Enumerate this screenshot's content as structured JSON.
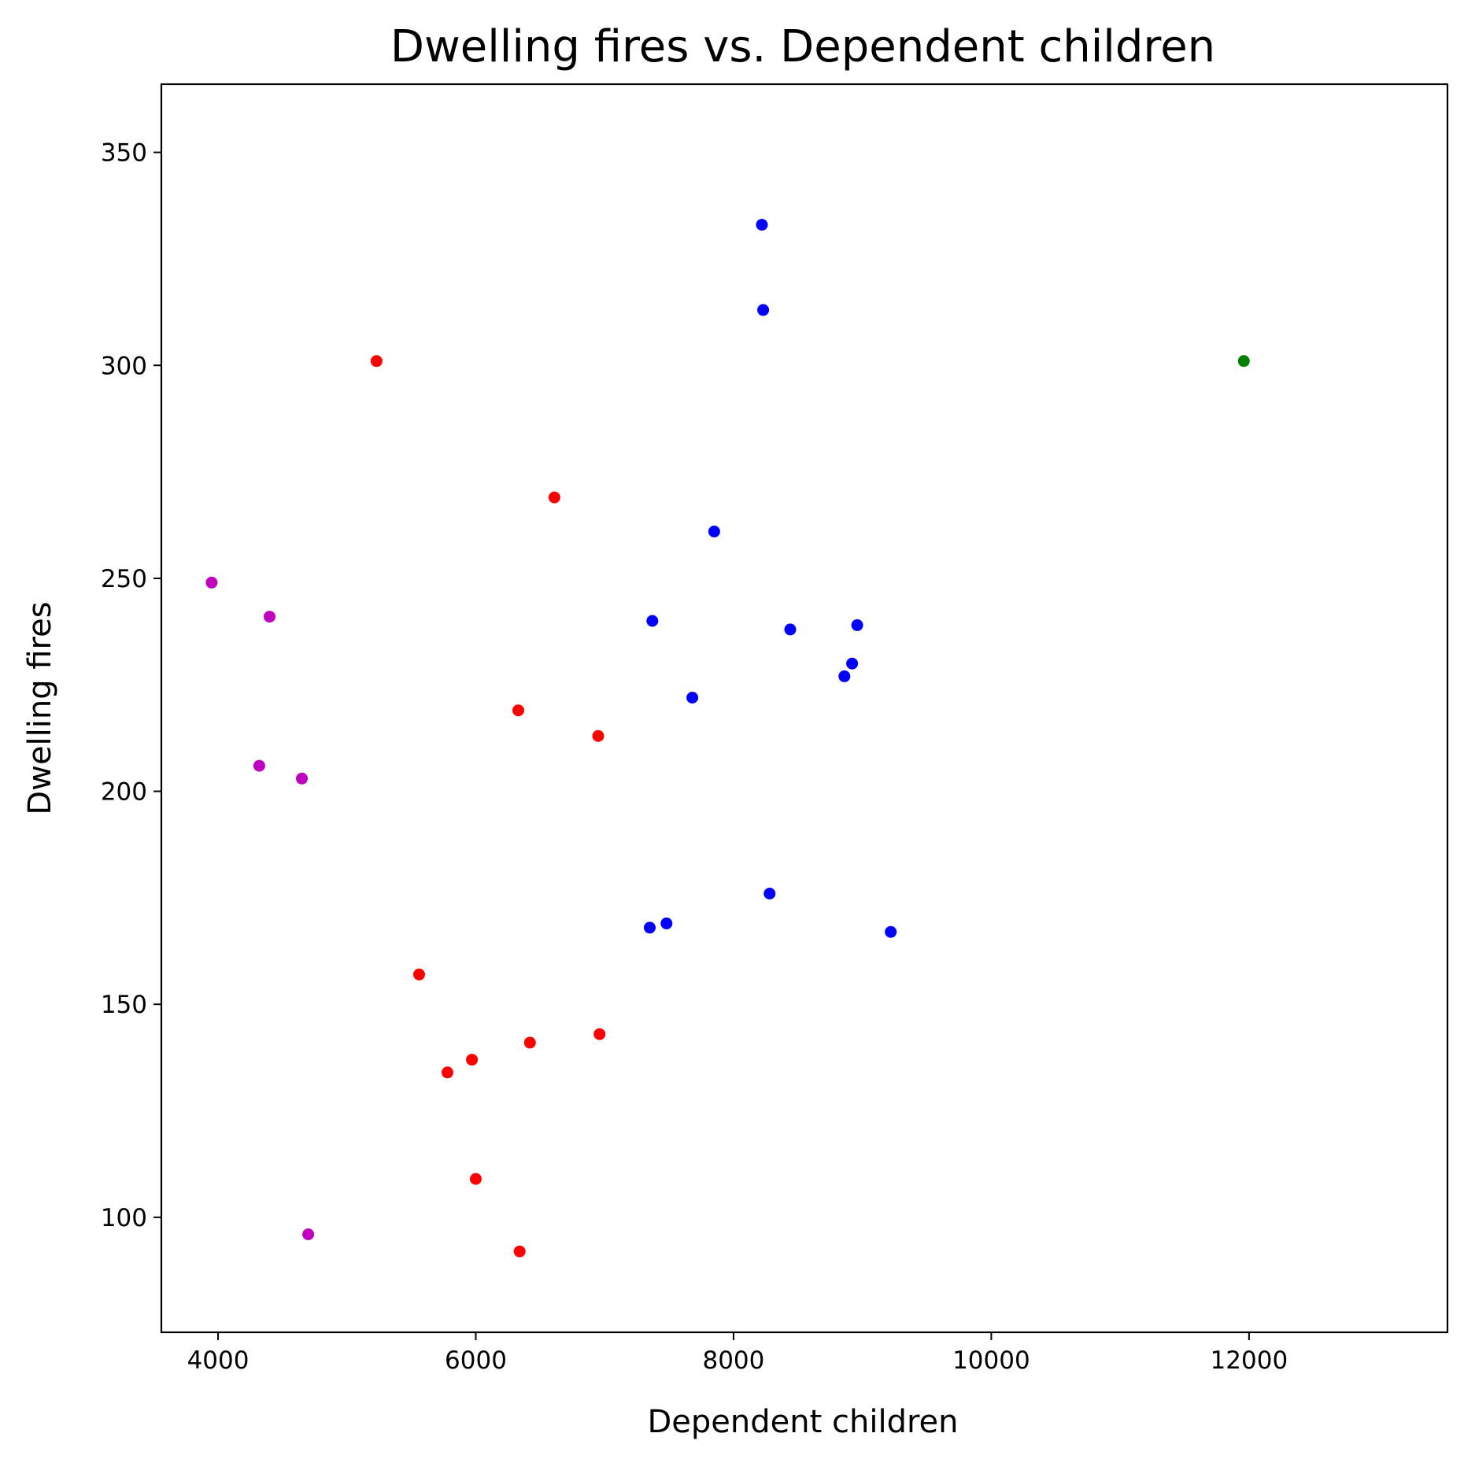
{
  "chart_data": {
    "type": "scatter",
    "title": "Dwelling fires vs. Dependent children",
    "xlabel": "Dependent children",
    "ylabel": "Dwelling fires",
    "xlim": [
      3560,
      13540
    ],
    "ylim": [
      73,
      366
    ],
    "xticks": [
      4000,
      6000,
      8000,
      10000,
      12000
    ],
    "yticks": [
      100,
      150,
      200,
      250,
      300,
      350
    ],
    "grid": false,
    "legend": "none",
    "colors": {
      "blue": "#0000ff",
      "red": "#ff0000",
      "magenta": "#bf00bf",
      "green": "#008000"
    },
    "series": [
      {
        "color": "#0000ff",
        "points": [
          [
            8220,
            333
          ],
          [
            8230,
            313
          ],
          [
            7850,
            261
          ],
          [
            7370,
            240
          ],
          [
            8440,
            238
          ],
          [
            8960,
            239
          ],
          [
            8920,
            230
          ],
          [
            8860,
            227
          ],
          [
            7680,
            222
          ],
          [
            8280,
            176
          ],
          [
            7480,
            169
          ],
          [
            7350,
            168
          ],
          [
            9220,
            167
          ]
        ]
      },
      {
        "color": "#ff0000",
        "points": [
          [
            5230,
            301
          ],
          [
            6610,
            269
          ],
          [
            6330,
            219
          ],
          [
            6950,
            213
          ],
          [
            5560,
            157
          ],
          [
            6960,
            143
          ],
          [
            6420,
            141
          ],
          [
            5970,
            137
          ],
          [
            5780,
            134
          ],
          [
            6000,
            109
          ],
          [
            6340,
            92
          ]
        ]
      },
      {
        "color": "#bf00bf",
        "points": [
          [
            3950,
            249
          ],
          [
            4400,
            241
          ],
          [
            4320,
            206
          ],
          [
            4650,
            203
          ],
          [
            4700,
            96
          ]
        ]
      },
      {
        "color": "#008000",
        "points": [
          [
            11960,
            301
          ]
        ]
      }
    ]
  }
}
